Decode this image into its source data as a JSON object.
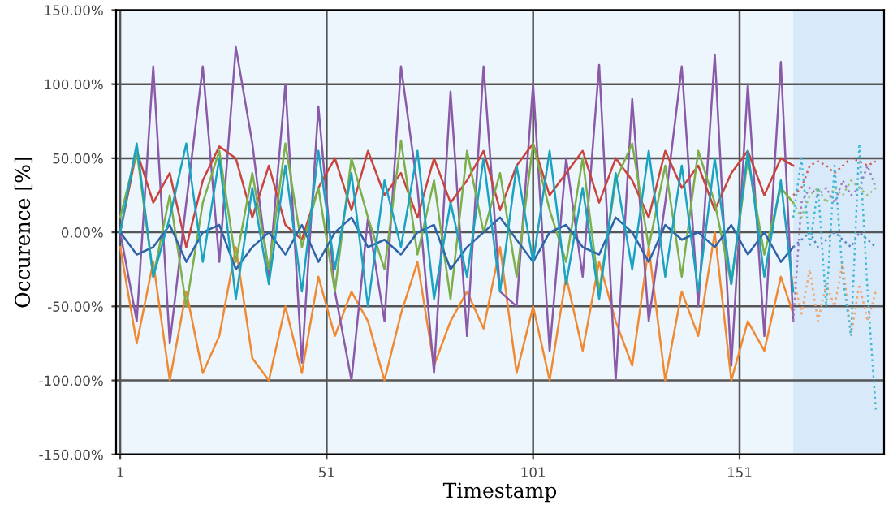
{
  "chart_data": {
    "type": "line",
    "xlabel": "Timestamp",
    "ylabel": "Occurence [%]",
    "xlim": [
      0,
      186
    ],
    "xticks": [
      1,
      51,
      101,
      151
    ],
    "ylim": [
      -150,
      150
    ],
    "yticks": [
      {
        "value": -150,
        "label": "-150.00%"
      },
      {
        "value": -100,
        "label": "-100.00%"
      },
      {
        "value": -50,
        "label": "-50.00%"
      },
      {
        "value": 0,
        "label": "0.00%"
      },
      {
        "value": 50,
        "label": "50.00%"
      },
      {
        "value": 100,
        "label": "100.00%"
      },
      {
        "value": 150,
        "label": "150.00%"
      }
    ],
    "grid": true,
    "legend": false,
    "bands": [
      {
        "axis": "x",
        "from": 164,
        "to": 186,
        "color": "#d8e9f9"
      }
    ],
    "series": [
      {
        "color": "#f08a32",
        "line_style": "solid",
        "x": [
          1,
          5,
          9,
          13,
          17,
          21,
          25,
          29,
          33,
          37,
          41,
          45,
          49,
          53,
          57,
          61,
          65,
          69,
          73,
          77,
          81,
          85,
          89,
          93,
          97,
          101,
          105,
          109,
          113,
          117,
          121,
          125,
          129,
          133,
          137,
          141,
          145,
          149,
          153,
          157,
          161,
          164
        ],
        "values": [
          -10,
          -75,
          -20,
          -100,
          -40,
          -95,
          -70,
          -10,
          -85,
          -100,
          -50,
          -95,
          -30,
          -70,
          -40,
          -60,
          -100,
          -55,
          -20,
          -90,
          -60,
          -40,
          -65,
          -10,
          -95,
          -50,
          -100,
          -30,
          -80,
          -20,
          -60,
          -90,
          -10,
          -100,
          -40,
          -70,
          0,
          -100,
          -60,
          -80,
          -30,
          -55
        ]
      },
      {
        "color": "#8a5aa8",
        "line_style": "solid",
        "x": [
          1,
          5,
          9,
          13,
          17,
          21,
          25,
          29,
          33,
          37,
          41,
          45,
          49,
          53,
          57,
          61,
          65,
          69,
          73,
          77,
          81,
          85,
          89,
          93,
          97,
          101,
          105,
          109,
          113,
          117,
          121,
          125,
          129,
          133,
          137,
          141,
          145,
          149,
          153,
          157,
          161,
          164
        ],
        "values": [
          0,
          -60,
          112,
          -75,
          20,
          112,
          -20,
          125,
          60,
          -30,
          100,
          -88,
          85,
          -40,
          -100,
          10,
          -60,
          112,
          30,
          -95,
          95,
          -70,
          112,
          -40,
          -50,
          100,
          -80,
          50,
          -30,
          113,
          -100,
          90,
          -60,
          20,
          112,
          -50,
          120,
          -90,
          100,
          -70,
          115,
          -60
        ]
      },
      {
        "color": "#c8443c",
        "line_style": "solid",
        "x": [
          1,
          5,
          9,
          13,
          17,
          21,
          25,
          29,
          33,
          37,
          41,
          45,
          49,
          53,
          57,
          61,
          65,
          69,
          73,
          77,
          81,
          85,
          89,
          93,
          97,
          101,
          105,
          109,
          113,
          117,
          121,
          125,
          129,
          133,
          137,
          141,
          145,
          149,
          153,
          157,
          161,
          164
        ],
        "values": [
          0,
          55,
          20,
          40,
          -10,
          35,
          58,
          50,
          10,
          45,
          5,
          -5,
          30,
          50,
          15,
          55,
          25,
          40,
          10,
          50,
          20,
          35,
          55,
          15,
          45,
          60,
          25,
          40,
          55,
          20,
          50,
          35,
          10,
          55,
          30,
          45,
          15,
          40,
          55,
          25,
          50,
          45
        ]
      },
      {
        "color": "#7cae4a",
        "line_style": "solid",
        "x": [
          1,
          5,
          9,
          13,
          17,
          21,
          25,
          29,
          33,
          37,
          41,
          45,
          49,
          53,
          57,
          61,
          65,
          69,
          73,
          77,
          81,
          85,
          89,
          93,
          97,
          101,
          105,
          109,
          113,
          117,
          121,
          125,
          129,
          133,
          137,
          141,
          145,
          149,
          153,
          157,
          161,
          164
        ],
        "values": [
          10,
          55,
          -30,
          25,
          -50,
          20,
          55,
          -20,
          40,
          -25,
          60,
          -10,
          30,
          -40,
          50,
          10,
          -25,
          62,
          -15,
          35,
          -45,
          55,
          0,
          40,
          -30,
          60,
          15,
          -20,
          50,
          -40,
          35,
          60,
          -10,
          45,
          -30,
          55,
          20,
          -35,
          50,
          -15,
          30,
          20
        ]
      },
      {
        "color": "#2e63a8",
        "line_style": "solid",
        "x": [
          1,
          5,
          9,
          13,
          17,
          21,
          25,
          29,
          33,
          37,
          41,
          45,
          49,
          53,
          57,
          61,
          65,
          69,
          73,
          77,
          81,
          85,
          89,
          93,
          97,
          101,
          105,
          109,
          113,
          117,
          121,
          125,
          129,
          133,
          137,
          141,
          145,
          149,
          153,
          157,
          161,
          164
        ],
        "values": [
          0,
          -15,
          -10,
          5,
          -20,
          0,
          5,
          -25,
          -10,
          0,
          -15,
          5,
          -20,
          0,
          10,
          -10,
          -5,
          -15,
          0,
          5,
          -25,
          -10,
          0,
          10,
          -5,
          -20,
          0,
          5,
          -10,
          -15,
          10,
          0,
          -20,
          5,
          -5,
          0,
          -10,
          5,
          -15,
          0,
          -20,
          -10
        ]
      },
      {
        "color": "#1aa3c0",
        "line_style": "solid",
        "x": [
          1,
          5,
          9,
          13,
          17,
          21,
          25,
          29,
          33,
          37,
          41,
          45,
          49,
          53,
          57,
          61,
          65,
          69,
          73,
          77,
          81,
          85,
          89,
          93,
          97,
          101,
          105,
          109,
          113,
          117,
          121,
          125,
          129,
          133,
          137,
          141,
          145,
          149,
          153,
          157,
          161,
          164
        ],
        "values": [
          0,
          60,
          -30,
          10,
          60,
          -20,
          50,
          -45,
          30,
          -35,
          45,
          -40,
          55,
          -25,
          40,
          -50,
          35,
          -10,
          55,
          -45,
          20,
          -30,
          50,
          -40,
          45,
          -20,
          55,
          -35,
          30,
          -45,
          40,
          -25,
          55,
          -30,
          45,
          -40,
          50,
          -35,
          55,
          -30,
          35,
          -40
        ]
      },
      {
        "color": "#f5a56a",
        "line_style": "dotted",
        "x": [
          164,
          166,
          168,
          170,
          172,
          174,
          176,
          178,
          180,
          182,
          184
        ],
        "values": [
          -30,
          -55,
          -25,
          -60,
          -35,
          -50,
          -20,
          -70,
          -35,
          -60,
          -40
        ]
      },
      {
        "color": "#a07cc0",
        "line_style": "dotted",
        "x": [
          164,
          166,
          168,
          170,
          172,
          174,
          176,
          178,
          180,
          182,
          184
        ],
        "values": [
          -60,
          20,
          30,
          25,
          30,
          20,
          35,
          25,
          30,
          45,
          30
        ]
      },
      {
        "color": "#d0605a",
        "line_style": "dotted",
        "x": [
          164,
          166,
          168,
          170,
          172,
          174,
          176,
          178,
          180,
          182,
          184
        ],
        "values": [
          25,
          30,
          45,
          48,
          45,
          40,
          45,
          50,
          48,
          45,
          48
        ]
      },
      {
        "color": "#98c070",
        "line_style": "dotted",
        "x": [
          164,
          166,
          168,
          170,
          172,
          174,
          176,
          178,
          180,
          182,
          184
        ],
        "values": [
          20,
          10,
          25,
          30,
          20,
          30,
          25,
          35,
          30,
          25,
          30
        ]
      },
      {
        "color": "#5a86c0",
        "line_style": "dotted",
        "x": [
          164,
          166,
          168,
          170,
          172,
          174,
          176,
          178,
          180,
          182,
          184
        ],
        "values": [
          -10,
          -5,
          0,
          -10,
          -5,
          0,
          -5,
          -10,
          0,
          -5,
          -10
        ]
      },
      {
        "color": "#40b8d4",
        "line_style": "dotted",
        "x": [
          164,
          166,
          168,
          170,
          172,
          174,
          176,
          178,
          180,
          182,
          184
        ],
        "values": [
          10,
          50,
          -10,
          30,
          -50,
          45,
          -30,
          -70,
          60,
          -40,
          -120
        ]
      }
    ]
  }
}
